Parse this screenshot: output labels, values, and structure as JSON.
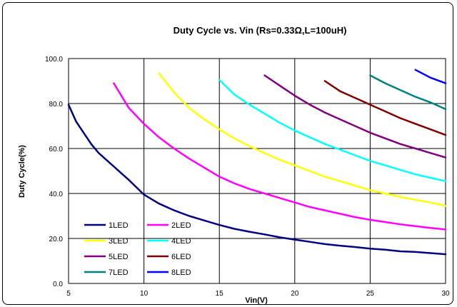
{
  "chart_data": {
    "type": "line",
    "title": "Duty Cycle vs. Vin (Rs=0.33Ω,L=100uH)",
    "xlabel": "Vin(V)",
    "ylabel": "Duty Cycle(%)",
    "xlim": [
      5,
      30
    ],
    "ylim": [
      0,
      100
    ],
    "x_ticks": [
      "5",
      "10",
      "15",
      "20",
      "25",
      "30"
    ],
    "y_ticks": [
      "0.0",
      "20.0",
      "40.0",
      "60.0",
      "80.0",
      "100.0"
    ],
    "grid": true,
    "legend_placement": "bottom-left",
    "series": [
      {
        "name": "1LED",
        "color": "#000080",
        "x": [
          5,
          5.5,
          6,
          6.5,
          7,
          7.5,
          8,
          8.5,
          9,
          10,
          11,
          12,
          13,
          14,
          15,
          16,
          17,
          18,
          19,
          20,
          21,
          22,
          23,
          24,
          25,
          26,
          27,
          28,
          29,
          30
        ],
        "y": [
          79.5,
          72,
          67,
          62,
          58,
          55,
          52,
          49,
          46,
          39.5,
          35.5,
          32.5,
          30,
          28,
          26,
          24.3,
          23,
          21.8,
          20.5,
          19.5,
          18.5,
          17.5,
          16.8,
          16.2,
          15.5,
          15,
          14.3,
          14,
          13.5,
          13
        ]
      },
      {
        "name": "2LED",
        "color": "#ff00ff",
        "x": [
          8,
          9,
          10,
          11,
          12,
          13,
          14,
          15,
          16,
          17,
          18,
          19,
          20,
          21,
          22,
          23,
          24,
          25,
          26,
          27,
          28,
          29,
          30
        ],
        "y": [
          89,
          78,
          71,
          65,
          60,
          55.5,
          51.5,
          47.5,
          44.5,
          42,
          40,
          38,
          36,
          34,
          32.5,
          31,
          29.5,
          28.3,
          27.3,
          26.3,
          25.5,
          24.7,
          24
        ]
      },
      {
        "name": "3LED",
        "color": "#ffff00",
        "x": [
          11,
          12,
          13,
          14,
          15,
          16,
          17,
          18,
          19,
          20,
          21,
          22,
          23,
          24,
          25,
          26,
          27,
          28,
          29,
          30
        ],
        "y": [
          93.5,
          85,
          78,
          73,
          68.5,
          64.5,
          61,
          58,
          55,
          52.5,
          50,
          47.5,
          45.5,
          43.5,
          41.5,
          40,
          38.5,
          37.2,
          36,
          34.5
        ]
      },
      {
        "name": "4LED",
        "color": "#00ffff",
        "x": [
          15,
          16,
          17,
          18,
          19,
          20,
          21,
          22,
          23,
          24,
          25,
          26,
          27,
          28,
          29,
          30
        ],
        "y": [
          90.5,
          84,
          79.5,
          75.5,
          71.5,
          68,
          65,
          62,
          59.5,
          57,
          54.5,
          52.5,
          50.5,
          48.5,
          47,
          45.5
        ]
      },
      {
        "name": "5LED",
        "color": "#800080",
        "x": [
          18,
          19,
          20,
          21,
          22,
          23,
          24,
          25,
          26,
          27,
          28,
          29,
          30
        ],
        "y": [
          92.5,
          88,
          83.5,
          79.5,
          76,
          73,
          70,
          67,
          64.5,
          62,
          60,
          58,
          56
        ]
      },
      {
        "name": "6LED",
        "color": "#800000",
        "x": [
          22,
          23,
          24,
          25,
          26,
          27,
          28,
          29,
          30
        ],
        "y": [
          90,
          85.5,
          82.5,
          79.5,
          76.5,
          73.5,
          71,
          68.5,
          66
        ]
      },
      {
        "name": "7LED",
        "color": "#008080",
        "x": [
          25,
          26,
          27,
          28,
          29,
          30
        ],
        "y": [
          92.5,
          89,
          86,
          83,
          80.5,
          77.5
        ]
      },
      {
        "name": "8LED",
        "color": "#0000ff",
        "x": [
          28,
          29,
          30
        ],
        "y": [
          95,
          91.5,
          89
        ]
      }
    ]
  }
}
